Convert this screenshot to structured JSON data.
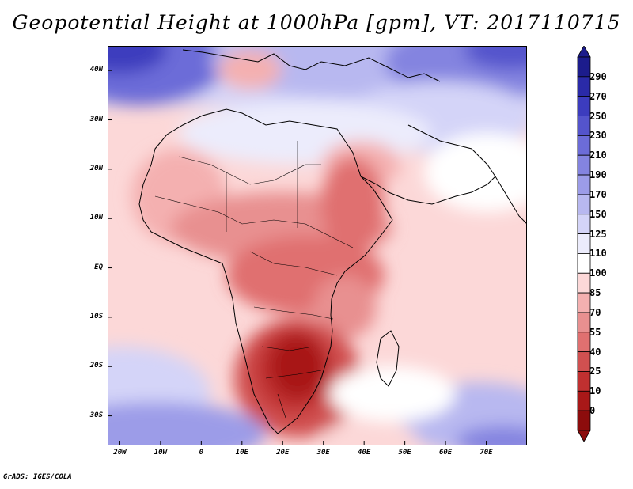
{
  "title": "Geopotential Height at 1000hPa [gpm], VT: 2017110715",
  "footer": "GrADS: IGES/COLA",
  "map": {
    "lon_range": [
      -23,
      80
    ],
    "lat_range": [
      -36,
      45
    ],
    "y_ticks": [
      {
        "value": 40,
        "label": "40N"
      },
      {
        "value": 30,
        "label": "30N"
      },
      {
        "value": 20,
        "label": "20N"
      },
      {
        "value": 10,
        "label": "10N"
      },
      {
        "value": 0,
        "label": "EQ"
      },
      {
        "value": -10,
        "label": "10S"
      },
      {
        "value": -20,
        "label": "20S"
      },
      {
        "value": -30,
        "label": "30S"
      }
    ],
    "x_ticks": [
      {
        "value": -20,
        "label": "20W"
      },
      {
        "value": -10,
        "label": "10W"
      },
      {
        "value": 0,
        "label": "0"
      },
      {
        "value": 10,
        "label": "10E"
      },
      {
        "value": 20,
        "label": "20E"
      },
      {
        "value": 30,
        "label": "30E"
      },
      {
        "value": 40,
        "label": "40E"
      },
      {
        "value": 50,
        "label": "50E"
      },
      {
        "value": 60,
        "label": "60E"
      },
      {
        "value": 70,
        "label": "70E"
      }
    ]
  },
  "colorbar": {
    "labels": [
      "290",
      "270",
      "250",
      "230",
      "210",
      "190",
      "170",
      "150",
      "125",
      "110",
      "100",
      "85",
      "70",
      "55",
      "40",
      "25",
      "10",
      "0"
    ],
    "colors": [
      "#1c1c8c",
      "#2a2aa8",
      "#3c3cbe",
      "#5454cc",
      "#6c6cd8",
      "#8484e0",
      "#9c9ce8",
      "#b8b8f0",
      "#d4d4f8",
      "#ececfc",
      "#ffffff",
      "#fcd8d8",
      "#f4b0b0",
      "#e89090",
      "#e07070",
      "#d05050",
      "#c03030",
      "#a81818",
      "#8c0c0c"
    ]
  },
  "field_levels": {
    "ocean_ne_atlantic": "#9c9ce8",
    "europe_mediterranean": "#b8b8f0",
    "mediterranean_strip": "#d4d4f8",
    "north_africa": "#ececfc",
    "sahara_west": "#f4b0b0",
    "sahel": "#e89090",
    "central_africa": "#e07070",
    "east_africa": "#e89090",
    "southern_africa": "#d05050",
    "kalahari_core": "#a81818",
    "atlantic_tropics": "#fcd8d8",
    "indian_ocean": "#fcd8d8",
    "south_atlantic_high": "#b8b8f0",
    "southern_ocean": "#d4d4f8"
  }
}
